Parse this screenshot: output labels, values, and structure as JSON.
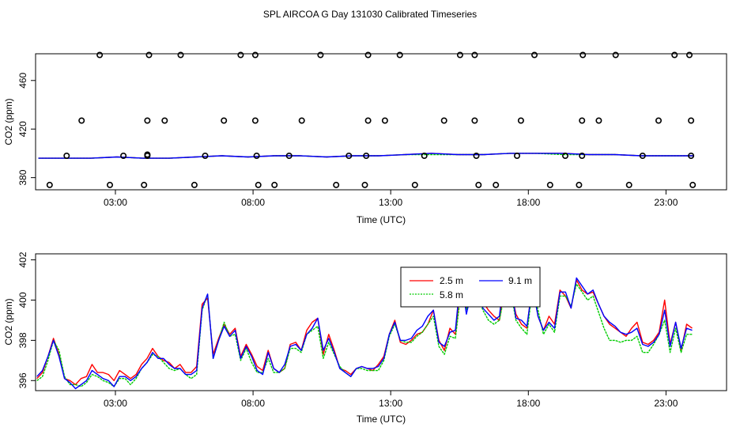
{
  "title": "SPL AIRCOA G  Day 131030  Calibrated Timeseries",
  "colors": {
    "red": "#ff0000",
    "green": "#00cc00",
    "blue": "#0000ff",
    "ink": "#000000"
  },
  "chart_data": [
    {
      "type": "scatter",
      "xlabel": "Time (UTC)",
      "ylabel": "CO2 (ppm)",
      "xlim": [
        0.1,
        25.2
      ],
      "ylim": [
        370,
        482
      ],
      "xticks": [
        3,
        8,
        13,
        18,
        23
      ],
      "xtick_labels": [
        "03:00",
        "08:00",
        "13:00",
        "18:00",
        "23:00"
      ],
      "yticks": [
        380,
        420,
        460
      ],
      "ytick_labels": [
        "380",
        "420",
        "460"
      ],
      "points": [
        {
          "x": 2.43,
          "y": 481
        },
        {
          "x": 4.22,
          "y": 481
        },
        {
          "x": 5.37,
          "y": 481
        },
        {
          "x": 7.55,
          "y": 481
        },
        {
          "x": 8.08,
          "y": 481
        },
        {
          "x": 10.45,
          "y": 481
        },
        {
          "x": 12.18,
          "y": 481
        },
        {
          "x": 13.33,
          "y": 481
        },
        {
          "x": 15.52,
          "y": 481
        },
        {
          "x": 16.05,
          "y": 481
        },
        {
          "x": 18.22,
          "y": 481
        },
        {
          "x": 19.98,
          "y": 481
        },
        {
          "x": 21.17,
          "y": 481
        },
        {
          "x": 23.31,
          "y": 481
        },
        {
          "x": 23.85,
          "y": 481
        },
        {
          "x": 1.77,
          "y": 427
        },
        {
          "x": 4.16,
          "y": 427
        },
        {
          "x": 4.79,
          "y": 427
        },
        {
          "x": 6.94,
          "y": 427
        },
        {
          "x": 8.08,
          "y": 427
        },
        {
          "x": 9.77,
          "y": 427
        },
        {
          "x": 12.18,
          "y": 427
        },
        {
          "x": 12.79,
          "y": 427
        },
        {
          "x": 14.94,
          "y": 427
        },
        {
          "x": 16.05,
          "y": 427
        },
        {
          "x": 17.73,
          "y": 427
        },
        {
          "x": 19.95,
          "y": 427
        },
        {
          "x": 20.56,
          "y": 427
        },
        {
          "x": 22.73,
          "y": 427
        },
        {
          "x": 23.91,
          "y": 427
        },
        {
          "x": 1.23,
          "y": 398
        },
        {
          "x": 3.29,
          "y": 398
        },
        {
          "x": 4.16,
          "y": 398
        },
        {
          "x": 4.16,
          "y": 399
        },
        {
          "x": 6.26,
          "y": 398
        },
        {
          "x": 8.13,
          "y": 398
        },
        {
          "x": 9.31,
          "y": 398
        },
        {
          "x": 11.48,
          "y": 398
        },
        {
          "x": 12.11,
          "y": 398
        },
        {
          "x": 14.22,
          "y": 398
        },
        {
          "x": 16.11,
          "y": 398
        },
        {
          "x": 17.59,
          "y": 398
        },
        {
          "x": 19.34,
          "y": 398
        },
        {
          "x": 19.95,
          "y": 398
        },
        {
          "x": 22.15,
          "y": 398
        },
        {
          "x": 23.91,
          "y": 398
        },
        {
          "x": 0.61,
          "y": 374
        },
        {
          "x": 2.8,
          "y": 374
        },
        {
          "x": 4.04,
          "y": 374
        },
        {
          "x": 5.87,
          "y": 374
        },
        {
          "x": 8.19,
          "y": 374
        },
        {
          "x": 8.78,
          "y": 374
        },
        {
          "x": 11.02,
          "y": 374
        },
        {
          "x": 12.06,
          "y": 374
        },
        {
          "x": 13.88,
          "y": 374
        },
        {
          "x": 16.19,
          "y": 374
        },
        {
          "x": 16.82,
          "y": 374
        },
        {
          "x": 18.79,
          "y": 374
        },
        {
          "x": 19.84,
          "y": 374
        },
        {
          "x": 21.66,
          "y": 374
        },
        {
          "x": 23.97,
          "y": 374
        }
      ],
      "series": [
        {
          "name": "2.5 m",
          "color": "#ff0000",
          "values": [
            396,
            396,
            396,
            397,
            396,
            396,
            397,
            398,
            397,
            398,
            398,
            397,
            398,
            398,
            399,
            400,
            399,
            399,
            400,
            400,
            400,
            399,
            399,
            398,
            398,
            398
          ]
        },
        {
          "name": "5.8 m",
          "color": "#00cc00",
          "values": [
            396,
            396,
            396,
            397,
            396,
            396,
            397,
            398,
            397,
            398,
            398,
            397,
            398,
            398,
            399,
            399,
            399,
            399,
            400,
            400,
            399,
            399,
            399,
            398,
            398,
            398
          ]
        },
        {
          "name": "9.1 m",
          "color": "#0000ff",
          "values": [
            396,
            396,
            396,
            397,
            396,
            396,
            397,
            398,
            397,
            398,
            398,
            397,
            398,
            398,
            399,
            400,
            399,
            399,
            400,
            400,
            400,
            399,
            399,
            398,
            398,
            398
          ]
        }
      ]
    },
    {
      "type": "line",
      "xlabel": "Time (UTC)",
      "ylabel": "CO2 (ppm)",
      "xlim": [
        0.1,
        25.2
      ],
      "ylim": [
        395.5,
        402.3
      ],
      "xticks": [
        3,
        8,
        13,
        18,
        23
      ],
      "xtick_labels": [
        "03:00",
        "08:00",
        "13:00",
        "18:00",
        "23:00"
      ],
      "yticks": [
        396,
        398,
        400,
        402
      ],
      "ytick_labels": [
        "396",
        "398",
        "400",
        "402"
      ],
      "legend": {
        "position": "top-right"
      },
      "x": [
        0.15,
        0.35,
        0.55,
        0.75,
        0.95,
        1.15,
        1.35,
        1.55,
        1.75,
        1.95,
        2.15,
        2.35,
        2.55,
        2.75,
        2.95,
        3.15,
        3.35,
        3.55,
        3.75,
        3.95,
        4.15,
        4.35,
        4.55,
        4.75,
        4.95,
        5.15,
        5.35,
        5.55,
        5.75,
        5.95,
        6.15,
        6.35,
        6.55,
        6.75,
        6.95,
        7.15,
        7.35,
        7.55,
        7.75,
        7.95,
        8.15,
        8.35,
        8.55,
        8.75,
        8.95,
        9.15,
        9.35,
        9.55,
        9.75,
        9.95,
        10.15,
        10.35,
        10.55,
        10.75,
        10.95,
        11.15,
        11.35,
        11.55,
        11.75,
        11.95,
        12.15,
        12.35,
        12.55,
        12.75,
        12.95,
        13.15,
        13.35,
        13.55,
        13.75,
        13.95,
        14.15,
        14.35,
        14.55,
        14.75,
        14.95,
        15.15,
        15.35,
        15.55,
        15.75,
        15.95,
        16.15,
        16.35,
        16.55,
        16.75,
        16.95,
        17.15,
        17.35,
        17.55,
        17.75,
        17.95,
        18.15,
        18.35,
        18.55,
        18.75,
        18.95,
        19.15,
        19.35,
        19.55,
        19.75,
        19.95,
        20.15,
        20.35,
        20.55,
        20.75,
        20.95,
        21.15,
        21.35,
        21.55,
        21.75,
        21.95,
        22.15,
        22.35,
        22.55,
        22.75,
        22.95,
        23.15,
        23.35,
        23.55,
        23.75,
        23.95
      ],
      "series": [
        {
          "name": "2.5 m",
          "color": "#ff0000",
          "values": [
            396.1,
            396.4,
            397.2,
            398.1,
            397.3,
            396.1,
            396.0,
            395.8,
            396.1,
            396.2,
            396.8,
            396.4,
            396.4,
            396.3,
            396.0,
            396.5,
            396.3,
            396.1,
            396.3,
            396.8,
            397.1,
            397.6,
            397.2,
            397.0,
            396.9,
            396.6,
            396.8,
            396.4,
            396.4,
            396.7,
            399.8,
            400.1,
            397.3,
            398.1,
            398.8,
            398.3,
            398.6,
            397.2,
            397.8,
            397.3,
            396.7,
            396.5,
            397.5,
            396.6,
            396.4,
            396.6,
            397.8,
            397.9,
            397.5,
            398.5,
            398.9,
            399.1,
            397.3,
            398.3,
            397.5,
            396.6,
            396.5,
            396.3,
            396.6,
            396.7,
            396.6,
            396.5,
            396.8,
            397.2,
            398.3,
            399.0,
            397.9,
            397.8,
            398.0,
            398.3,
            398.4,
            398.8,
            399.5,
            398.0,
            397.5,
            398.6,
            398.3,
            400.9,
            399.6,
            400.9,
            400.5,
            399.9,
            399.5,
            399.2,
            399.0,
            400.8,
            400.6,
            399.3,
            398.8,
            398.6,
            400.9,
            399.2,
            398.5,
            399.2,
            398.8,
            400.5,
            400.2,
            399.6,
            401.0,
            400.5,
            400.3,
            400.4,
            399.8,
            399.2,
            398.8,
            398.6,
            398.4,
            398.2,
            398.6,
            398.9,
            397.9,
            397.8,
            398.0,
            398.4,
            400.0,
            397.8,
            398.9,
            397.5,
            398.8,
            398.6
          ]
        },
        {
          "name": "5.8 m",
          "color": "#00cc00",
          "values": [
            396.0,
            396.2,
            397.0,
            398.0,
            397.5,
            396.2,
            395.8,
            395.8,
            395.7,
            395.9,
            396.3,
            396.2,
            396.0,
            395.9,
            395.7,
            396.1,
            396.1,
            395.8,
            396.1,
            396.6,
            396.9,
            397.3,
            397.2,
            396.9,
            396.6,
            396.5,
            396.6,
            396.3,
            396.1,
            396.3,
            399.5,
            400.3,
            397.1,
            398.0,
            398.9,
            398.2,
            398.3,
            397.0,
            397.6,
            396.9,
            396.4,
            396.4,
            397.1,
            396.4,
            396.4,
            396.6,
            397.6,
            397.6,
            397.4,
            398.3,
            398.5,
            398.7,
            397.1,
            397.9,
            397.3,
            396.7,
            396.4,
            396.2,
            396.6,
            396.6,
            396.5,
            396.5,
            396.5,
            397.0,
            398.2,
            398.8,
            398.0,
            397.9,
            397.9,
            398.2,
            398.4,
            398.8,
            399.2,
            397.7,
            397.3,
            398.2,
            398.1,
            400.4,
            399.5,
            400.6,
            400.2,
            399.5,
            399.0,
            398.8,
            399.0,
            400.4,
            400.5,
            399.0,
            398.6,
            398.3,
            400.6,
            399.5,
            398.3,
            398.8,
            398.4,
            400.2,
            400.2,
            399.7,
            400.8,
            400.4,
            400.0,
            400.2,
            399.4,
            398.6,
            398.0,
            398.0,
            397.9,
            398.0,
            398.0,
            398.2,
            397.4,
            397.4,
            397.8,
            398.3,
            399.0,
            397.4,
            398.6,
            397.4,
            398.3,
            398.3
          ]
        },
        {
          "name": "9.1 m",
          "color": "#0000ff",
          "values": [
            396.2,
            396.5,
            397.2,
            398.0,
            397.2,
            396.1,
            395.9,
            395.6,
            395.8,
            396.0,
            396.5,
            396.3,
            396.1,
            396.0,
            395.7,
            396.2,
            396.2,
            396.0,
            396.2,
            396.6,
            396.9,
            397.4,
            397.1,
            397.1,
            396.8,
            396.6,
            396.6,
            396.3,
            396.3,
            396.5,
            399.6,
            400.3,
            397.1,
            398.0,
            398.7,
            398.2,
            398.5,
            397.1,
            397.7,
            397.2,
            396.5,
            396.3,
            397.4,
            396.6,
            396.4,
            396.8,
            397.7,
            397.8,
            397.5,
            398.3,
            398.6,
            399.1,
            397.5,
            398.1,
            397.4,
            396.6,
            396.4,
            396.2,
            396.6,
            396.7,
            396.6,
            396.6,
            396.7,
            397.1,
            398.3,
            398.9,
            398.0,
            398.0,
            398.1,
            398.5,
            398.7,
            399.2,
            399.5,
            397.9,
            397.7,
            398.4,
            398.5,
            401.3,
            399.3,
            400.5,
            400.4,
            399.6,
            399.3,
            399.0,
            399.2,
            401.6,
            400.9,
            399.1,
            399.0,
            398.7,
            400.7,
            399.2,
            398.5,
            398.9,
            398.6,
            400.4,
            400.4,
            399.6,
            401.1,
            400.7,
            400.3,
            400.5,
            399.8,
            399.2,
            398.9,
            398.7,
            398.4,
            398.3,
            398.4,
            398.6,
            397.8,
            397.7,
            397.9,
            398.3,
            399.5,
            397.7,
            398.9,
            397.6,
            398.6,
            398.5
          ]
        }
      ]
    }
  ]
}
